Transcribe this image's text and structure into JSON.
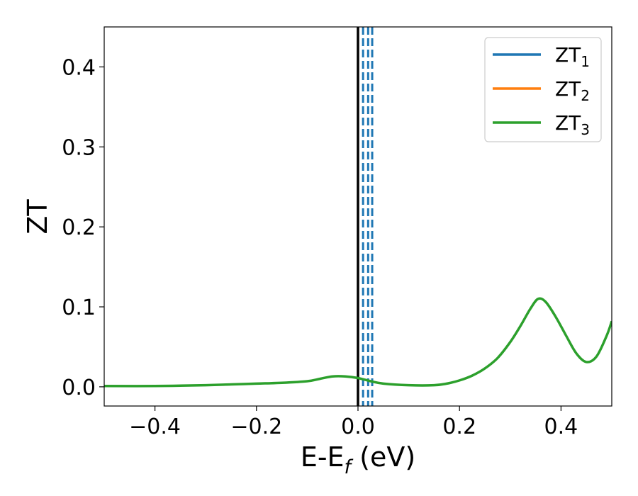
{
  "chart_data": {
    "type": "line",
    "xlabel": "E-E_f (eV)",
    "xlabel_parts": {
      "main": "E-E",
      "sub": "f",
      "unit": " (eV)"
    },
    "ylabel": "ZT",
    "xlim": [
      -0.5,
      0.5
    ],
    "ylim": [
      -0.024,
      0.45
    ],
    "x_ticks": [
      -0.4,
      -0.2,
      0.0,
      0.2,
      0.4
    ],
    "x_tick_labels": [
      "−0.4",
      "−0.2",
      "0.0",
      "0.2",
      "0.4"
    ],
    "y_ticks": [
      0.0,
      0.1,
      0.2,
      0.3,
      0.4
    ],
    "y_tick_labels": [
      "0.0",
      "0.1",
      "0.2",
      "0.3",
      "0.4"
    ],
    "grid": false,
    "legend_position": "top-right",
    "legend": [
      {
        "label": "ZT",
        "sub": "1",
        "color": "#1f77b4"
      },
      {
        "label": "ZT",
        "sub": "2",
        "color": "#ff7f0e"
      },
      {
        "label": "ZT",
        "sub": "3",
        "color": "#2ca02c"
      }
    ],
    "series": [
      {
        "name": "ZT3",
        "color": "#2ca02c",
        "x": [
          -0.5,
          -0.4,
          -0.3,
          -0.25,
          -0.2,
          -0.15,
          -0.1,
          -0.075,
          -0.05,
          -0.025,
          0.0,
          0.025,
          0.05,
          0.1,
          0.15,
          0.175,
          0.2,
          0.225,
          0.25,
          0.275,
          0.3,
          0.32,
          0.34,
          0.355,
          0.37,
          0.39,
          0.41,
          0.43,
          0.45,
          0.47,
          0.49,
          0.5
        ],
        "y": [
          0.001,
          0.001,
          0.002,
          0.003,
          0.004,
          0.005,
          0.007,
          0.01,
          0.013,
          0.013,
          0.011,
          0.007,
          0.004,
          0.002,
          0.002,
          0.004,
          0.008,
          0.014,
          0.023,
          0.036,
          0.056,
          0.076,
          0.098,
          0.11,
          0.106,
          0.087,
          0.064,
          0.042,
          0.031,
          0.038,
          0.064,
          0.082
        ]
      }
    ],
    "vertical_lines": [
      {
        "x": 0.0,
        "color": "#000000",
        "style": "solid"
      },
      {
        "x": 0.01,
        "color": "#1f77b4",
        "style": "dashed"
      },
      {
        "x": 0.02,
        "color": "#1f77b4",
        "style": "dashed"
      },
      {
        "x": 0.028,
        "color": "#1f77b4",
        "style": "dashed"
      }
    ]
  }
}
